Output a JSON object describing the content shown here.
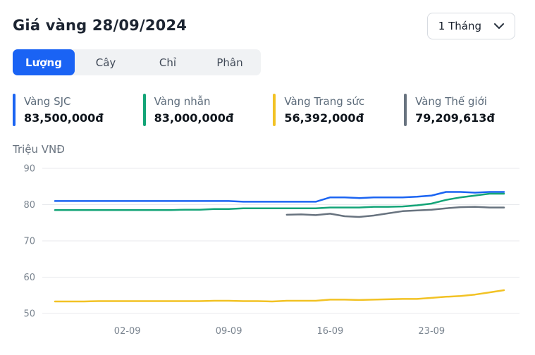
{
  "header": {
    "title": "Giá vàng 28/09/2024",
    "period_selected": "1 Tháng"
  },
  "tabs": {
    "active_index": 0,
    "items": [
      {
        "label": "Lượng"
      },
      {
        "label": "Cây"
      },
      {
        "label": "Chỉ"
      },
      {
        "label": "Phân"
      }
    ]
  },
  "legend": [
    {
      "label": "Vàng SJC",
      "value": "83,500,000đ"
    },
    {
      "label": "Vàng nhẫn",
      "value": "83,000,000đ"
    },
    {
      "label": "Vàng Trang sức",
      "value": "56,392,000đ"
    },
    {
      "label": "Vàng Thế giới",
      "value": "79,209,613đ"
    }
  ],
  "chart": {
    "unit_label": "Triệu VNĐ"
  },
  "chart_data": {
    "type": "line",
    "title": "Giá vàng 28/09/2024",
    "ylabel": "Triệu VNĐ",
    "ylim": [
      50,
      90
    ],
    "yticks": [
      50,
      60,
      70,
      80,
      90
    ],
    "grid": "horizontal",
    "legend_position": "top",
    "x_count": 32,
    "xticks": [
      {
        "index": 5,
        "label": "02-09"
      },
      {
        "index": 12,
        "label": "09-09"
      },
      {
        "index": 19,
        "label": "16-09"
      },
      {
        "index": 26,
        "label": "23-09"
      }
    ],
    "series": [
      {
        "name": "Vàng SJC",
        "color": "#1b64f2",
        "values": [
          81,
          81,
          81,
          81,
          81,
          81,
          81,
          81,
          81,
          81,
          81,
          81,
          81,
          80.8,
          80.8,
          80.8,
          80.8,
          80.8,
          80.8,
          82,
          82,
          81.8,
          82,
          82,
          82,
          82.2,
          82.5,
          83.5,
          83.5,
          83.3,
          83.5,
          83.5
        ]
      },
      {
        "name": "Vàng nhẫn",
        "color": "#13a477",
        "values": [
          78.5,
          78.5,
          78.5,
          78.5,
          78.5,
          78.5,
          78.5,
          78.5,
          78.5,
          78.6,
          78.6,
          78.8,
          78.8,
          79,
          79,
          79,
          79,
          79,
          79,
          79.2,
          79.2,
          79.2,
          79.4,
          79.4,
          79.5,
          79.8,
          80.3,
          81.3,
          82,
          82.5,
          83,
          83
        ]
      },
      {
        "name": "Vàng Trang sức",
        "color": "#f2c224",
        "values": [
          53.3,
          53.3,
          53.3,
          53.4,
          53.4,
          53.4,
          53.4,
          53.4,
          53.4,
          53.4,
          53.4,
          53.5,
          53.5,
          53.4,
          53.4,
          53.3,
          53.5,
          53.5,
          53.5,
          53.8,
          53.8,
          53.7,
          53.8,
          53.9,
          54,
          54,
          54.3,
          54.6,
          54.8,
          55.2,
          55.8,
          56.4
        ]
      },
      {
        "name": "Vàng Thế giới",
        "color": "#68737f",
        "values": [
          null,
          null,
          null,
          null,
          null,
          null,
          null,
          null,
          null,
          null,
          null,
          null,
          null,
          null,
          null,
          null,
          77.2,
          77.3,
          77.1,
          77.5,
          76.8,
          76.6,
          77,
          77.6,
          78.2,
          78.4,
          78.6,
          79,
          79.3,
          79.4,
          79.2,
          79.2
        ]
      }
    ]
  }
}
